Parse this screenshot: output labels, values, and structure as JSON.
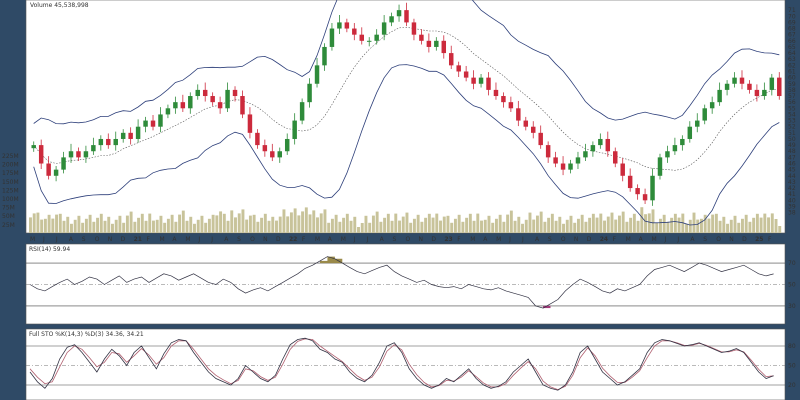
{
  "chart_data": {
    "type": "candlestick",
    "main": {
      "legend": "Volume 45,538,998",
      "price_ylim": [
        35,
        72
      ],
      "price_ticks": [
        "71",
        "70",
        "69",
        "68",
        "67",
        "66",
        "65",
        "64",
        "63",
        "62",
        "61",
        "60",
        "59",
        "58",
        "57",
        "56",
        "55",
        "54",
        "53",
        "52",
        "51",
        "50",
        "49",
        "48",
        "47",
        "46",
        "45",
        "44",
        "43",
        "42",
        "41",
        "40",
        "39",
        "38"
      ],
      "volume_ticks": [
        "225M",
        "200M",
        "175M",
        "150M",
        "125M",
        "100M",
        "75M",
        "50M",
        "25M"
      ],
      "x_months": [
        "M",
        "J",
        "J",
        "A",
        "S",
        "O",
        "N",
        "D",
        "21",
        "F",
        "M",
        "A",
        "M",
        "J",
        "J",
        "A",
        "S",
        "O",
        "N",
        "D",
        "22",
        "F",
        "M",
        "A",
        "M",
        "J",
        "J",
        "A",
        "S",
        "O",
        "N",
        "D",
        "23",
        "F",
        "M",
        "A",
        "M",
        "J",
        "J",
        "A",
        "S",
        "O",
        "N",
        "D",
        "24",
        "F",
        "M",
        "A",
        "M",
        "J",
        "J",
        "A",
        "S",
        "O",
        "N",
        "D",
        "25",
        "F"
      ],
      "close_series": [
        49,
        46,
        44,
        45,
        47,
        48,
        47,
        48,
        49,
        50,
        49,
        50,
        51,
        50,
        52,
        53,
        52,
        54,
        55,
        56,
        55,
        57,
        58,
        57,
        56,
        55,
        58,
        57,
        54,
        51,
        49,
        48,
        47,
        48,
        50,
        53,
        56,
        59,
        62,
        65,
        68,
        69,
        68,
        67,
        66,
        66,
        67,
        69,
        70,
        71,
        69,
        67,
        66,
        65,
        66,
        64,
        62,
        61,
        60,
        59,
        60,
        58,
        57,
        56,
        55,
        53,
        52,
        51,
        49,
        47,
        46,
        45,
        46,
        47,
        48,
        49,
        50,
        48,
        46,
        44,
        42,
        41,
        40,
        44,
        47,
        48,
        49,
        50,
        52,
        53,
        55,
        56,
        58,
        59,
        60,
        59,
        58,
        57,
        58,
        60,
        57
      ]
    },
    "rsi": {
      "label": "RSI(14) 59.94",
      "ticks": [
        "70",
        "50",
        "30"
      ],
      "ylim": [
        15,
        85
      ],
      "values": [
        50,
        46,
        44,
        48,
        52,
        55,
        50,
        53,
        57,
        55,
        50,
        54,
        58,
        52,
        55,
        57,
        52,
        56,
        60,
        58,
        54,
        57,
        60,
        56,
        52,
        50,
        55,
        52,
        46,
        42,
        45,
        47,
        44,
        48,
        52,
        56,
        60,
        65,
        68,
        72,
        76,
        74,
        70,
        66,
        62,
        60,
        63,
        66,
        68,
        62,
        58,
        55,
        52,
        54,
        50,
        48,
        47,
        48,
        46,
        50,
        48,
        46,
        45,
        47,
        44,
        42,
        40,
        38,
        30,
        28,
        32,
        36,
        44,
        50,
        55,
        52,
        48,
        44,
        42,
        46,
        44,
        47,
        50,
        58,
        64,
        66,
        68,
        65,
        62,
        66,
        70,
        68,
        65,
        62,
        64,
        66,
        68,
        64,
        60,
        58,
        59.94
      ]
    },
    "sto": {
      "label": "Full STO %K(14,3) %D(3) 34.36, 34.21",
      "ticks": [
        "80",
        "50",
        "20"
      ],
      "ylim": [
        0,
        100
      ],
      "k": [
        40,
        25,
        15,
        30,
        60,
        78,
        82,
        70,
        55,
        40,
        60,
        75,
        65,
        50,
        70,
        80,
        62,
        45,
        68,
        85,
        90,
        88,
        70,
        55,
        40,
        30,
        25,
        20,
        30,
        50,
        40,
        30,
        25,
        35,
        60,
        82,
        90,
        92,
        88,
        75,
        70,
        60,
        55,
        40,
        30,
        25,
        35,
        55,
        80,
        85,
        70,
        45,
        30,
        20,
        15,
        20,
        30,
        25,
        35,
        45,
        30,
        20,
        15,
        18,
        25,
        40,
        50,
        60,
        40,
        20,
        15,
        12,
        20,
        40,
        70,
        80,
        60,
        40,
        30,
        20,
        25,
        35,
        45,
        70,
        85,
        90,
        88,
        84,
        80,
        82,
        85,
        80,
        75,
        70,
        72,
        76,
        70,
        55,
        40,
        30,
        34.36
      ],
      "d": [
        45,
        32,
        22,
        25,
        48,
        70,
        80,
        75,
        62,
        48,
        55,
        70,
        68,
        55,
        65,
        76,
        66,
        52,
        62,
        80,
        88,
        88,
        75,
        60,
        45,
        35,
        28,
        22,
        27,
        45,
        42,
        33,
        27,
        32,
        52,
        75,
        87,
        91,
        90,
        80,
        72,
        64,
        56,
        45,
        34,
        27,
        32,
        48,
        72,
        82,
        74,
        52,
        36,
        24,
        17,
        19,
        27,
        26,
        32,
        42,
        33,
        23,
        17,
        17,
        22,
        35,
        46,
        56,
        45,
        26,
        17,
        13,
        18,
        35,
        62,
        77,
        65,
        46,
        34,
        24,
        24,
        32,
        42,
        62,
        80,
        88,
        88,
        85,
        81,
        81,
        84,
        81,
        76,
        71,
        71,
        74,
        71,
        58,
        44,
        33,
        34.21
      ]
    }
  }
}
